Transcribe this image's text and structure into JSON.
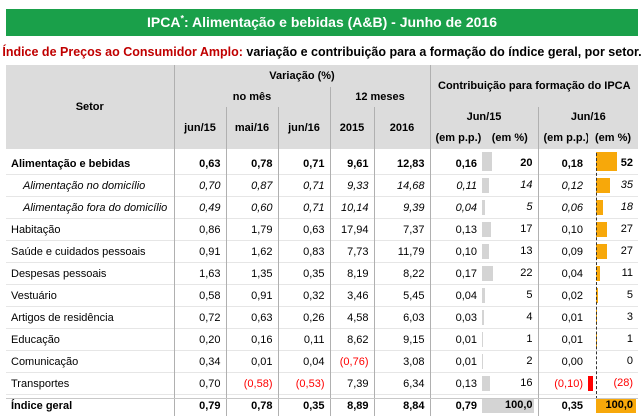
{
  "title": {
    "prefix": "IPCA",
    "sup": "*",
    "rest": ": Alimentação e bebidas (A&B) - Junho de 2016"
  },
  "subtitle": {
    "highlight": "Índice de Preços ao Consumidor Amplo:",
    "text": " variação e contribuição para a formação do índice geral, por setor."
  },
  "header": {
    "setor": "Setor",
    "variacao": "Variação (%)",
    "no_mes": "no mês",
    "doze_meses": "12 meses",
    "contribuicao": "Contribuição para formação do IPCA",
    "jun15_group": "Jun/15",
    "jun16_group": "Jun/16",
    "em_pp": "(em p.p.)",
    "em_pct": "(em %)",
    "cols": [
      "jun/15",
      "mai/16",
      "jun/16",
      "2015",
      "2016"
    ]
  },
  "colors": {
    "title_green": "#1aa04a",
    "bar_gray": "#d4d4d4",
    "bar_orange": "#f7a80a",
    "bar_red": "#ff0000",
    "negative_text": "#ff0000"
  },
  "rows": [
    {
      "setor": "Alimentação e bebidas",
      "jun15": "0,63",
      "mai16": "0,78",
      "jun16": "0,71",
      "y2015": "9,61",
      "y2016": "12,83",
      "pp15": "0,16",
      "pct15": "20",
      "pp16": "0,18",
      "pct16": "52",
      "pct15_val": 20,
      "pct16_val": 52,
      "style": "bold"
    },
    {
      "setor": "Alimentação no domicílio",
      "jun15": "0,70",
      "mai16": "0,87",
      "jun16": "0,71",
      "y2015": "9,33",
      "y2016": "14,68",
      "pp15": "0,11",
      "pct15": "14",
      "pp16": "0,12",
      "pct16": "35",
      "pct15_val": 14,
      "pct16_val": 35,
      "style": "ital"
    },
    {
      "setor": "Alimentação fora do domicílio",
      "jun15": "0,49",
      "mai16": "0,60",
      "jun16": "0,71",
      "y2015": "10,14",
      "y2016": "9,39",
      "pp15": "0,04",
      "pct15": "5",
      "pp16": "0,06",
      "pct16": "18",
      "pct15_val": 5,
      "pct16_val": 18,
      "style": "ital"
    },
    {
      "setor": "Habitação",
      "jun15": "0,86",
      "mai16": "1,79",
      "jun16": "0,63",
      "y2015": "17,94",
      "y2016": "7,37",
      "pp15": "0,13",
      "pct15": "17",
      "pp16": "0,10",
      "pct16": "27",
      "pct15_val": 17,
      "pct16_val": 27,
      "style": ""
    },
    {
      "setor": "Saúde e cuidados pessoais",
      "jun15": "0,91",
      "mai16": "1,62",
      "jun16": "0,83",
      "y2015": "7,73",
      "y2016": "11,79",
      "pp15": "0,10",
      "pct15": "13",
      "pp16": "0,09",
      "pct16": "27",
      "pct15_val": 13,
      "pct16_val": 27,
      "style": ""
    },
    {
      "setor": "Despesas pessoais",
      "jun15": "1,63",
      "mai16": "1,35",
      "jun16": "0,35",
      "y2015": "8,19",
      "y2016": "8,22",
      "pp15": "0,17",
      "pct15": "22",
      "pp16": "0,04",
      "pct16": "11",
      "pct15_val": 22,
      "pct16_val": 11,
      "style": ""
    },
    {
      "setor": "Vestuário",
      "jun15": "0,58",
      "mai16": "0,91",
      "jun16": "0,32",
      "y2015": "3,46",
      "y2016": "5,45",
      "pp15": "0,04",
      "pct15": "5",
      "pp16": "0,02",
      "pct16": "5",
      "pct15_val": 5,
      "pct16_val": 5,
      "style": ""
    },
    {
      "setor": "Artigos de residência",
      "jun15": "0,72",
      "mai16": "0,63",
      "jun16": "0,26",
      "y2015": "4,58",
      "y2016": "6,03",
      "pp15": "0,03",
      "pct15": "4",
      "pp16": "0,01",
      "pct16": "3",
      "pct15_val": 4,
      "pct16_val": 3,
      "style": ""
    },
    {
      "setor": "Educação",
      "jun15": "0,20",
      "mai16": "0,16",
      "jun16": "0,11",
      "y2015": "8,62",
      "y2016": "9,15",
      "pp15": "0,01",
      "pct15": "1",
      "pp16": "0,01",
      "pct16": "1",
      "pct15_val": 1,
      "pct16_val": 1,
      "style": ""
    },
    {
      "setor": "Comunicação",
      "jun15": "0,34",
      "mai16": "0,01",
      "jun16": "0,04",
      "y2015": "(0,76)",
      "y2016": "3,08",
      "pp15": "0,01",
      "pct15": "2",
      "pp16": "0,00",
      "pct16": "0",
      "pct15_val": 2,
      "pct16_val": 0,
      "style": ""
    },
    {
      "setor": "Transportes",
      "jun15": "0,70",
      "mai16": "(0,58)",
      "jun16": "(0,53)",
      "y2015": "7,39",
      "y2016": "6,34",
      "pp15": "0,13",
      "pct15": "16",
      "pp16": "(0,10)",
      "pct16": "(28)",
      "pct15_val": 16,
      "pct16_val": -28,
      "style": ""
    },
    {
      "setor": "Índice geral",
      "jun15": "0,79",
      "mai16": "0,78",
      "jun16": "0,35",
      "y2015": "8,89",
      "y2016": "8,84",
      "pp15": "0,79",
      "pct15": "100,0",
      "pp16": "0,35",
      "pct16": "100,0",
      "pct15_val": 100,
      "pct16_val": 100,
      "style": "bold"
    }
  ]
}
